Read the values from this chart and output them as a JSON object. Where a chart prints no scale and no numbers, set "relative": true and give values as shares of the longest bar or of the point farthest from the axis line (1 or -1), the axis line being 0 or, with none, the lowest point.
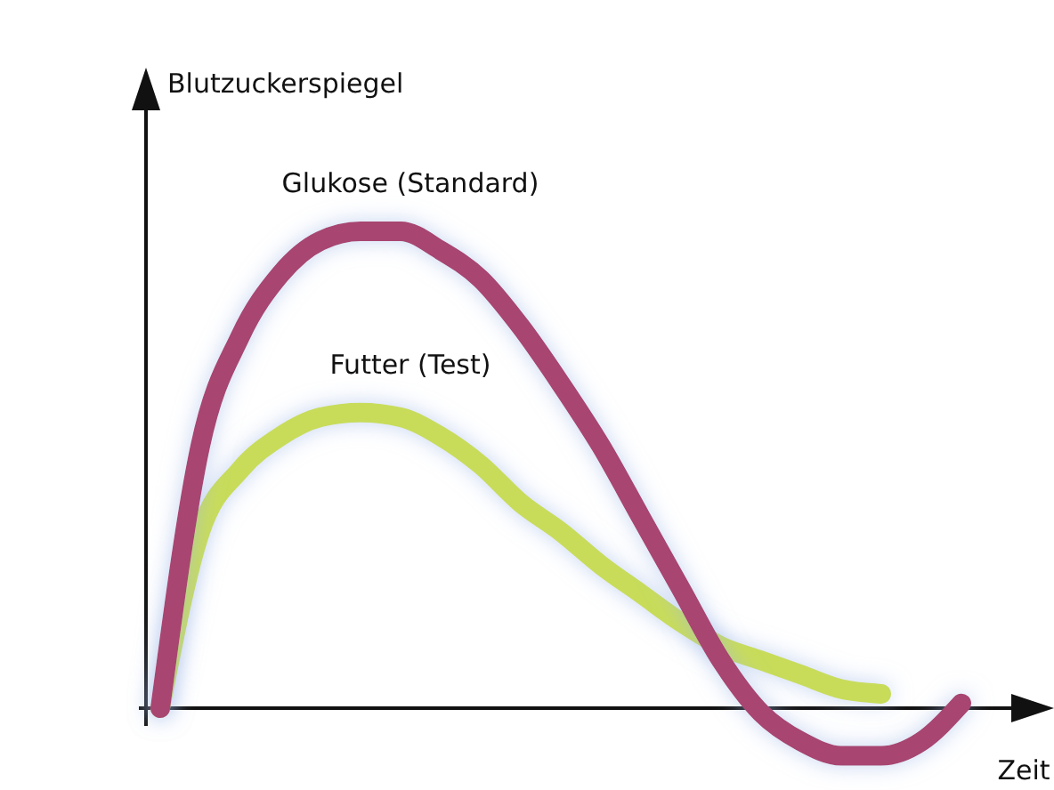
{
  "chart_data": {
    "type": "line",
    "relative": true,
    "xlabel": "Zeit",
    "ylabel": "Blutzuckerspiegel",
    "categories": [
      null,
      null,
      null,
      null,
      null,
      null,
      null,
      null,
      null,
      null,
      null,
      null,
      null,
      null,
      null,
      null,
      null,
      null,
      null,
      null,
      null
    ],
    "series": [
      {
        "name": "Glukose (Standard)",
        "color": "#a8456f",
        "values": [
          0,
          0.55,
          0.78,
          0.91,
          0.98,
          1,
          1,
          0.96,
          0.9,
          0.8,
          0.68,
          0.55,
          0.4,
          0.25,
          0.1,
          -0.01,
          -0.07,
          -0.1,
          -0.1,
          -0.07,
          0.01
        ]
      },
      {
        "name": "Futter (Test)",
        "color": "#c8dc5a",
        "values": [
          0,
          0.37,
          0.5,
          0.57,
          0.61,
          0.62,
          0.61,
          0.57,
          0.51,
          0.43,
          0.37,
          0.3,
          0.24,
          0.18,
          0.13,
          0.1,
          0.07,
          0.04,
          0.03,
          null,
          null
        ]
      }
    ]
  }
}
